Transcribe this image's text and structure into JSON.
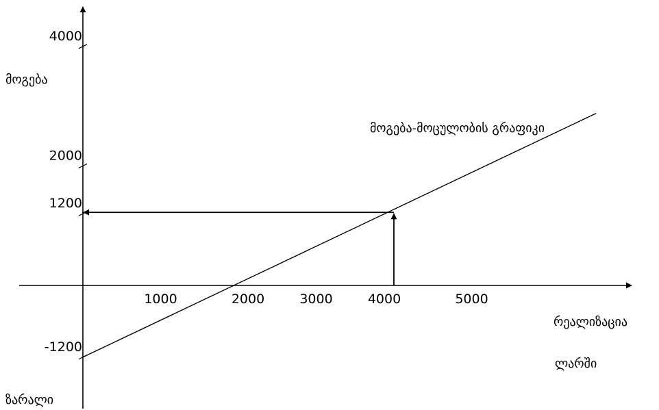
{
  "chart_data": {
    "type": "line",
    "title": "",
    "xlabel": "რეალიზაცია ლარში",
    "xlabel_lines": [
      "რეალიზაცია",
      "ლარში"
    ],
    "ylabel_top": "მოგება",
    "ylabel_bottom": "ზარალი",
    "x_ticks": [
      1000,
      2000,
      3000,
      4000,
      5000
    ],
    "y_ticks": [
      -1200,
      1200,
      2000,
      4000
    ],
    "series": [
      {
        "name": "მოგება-მოცულობის გრაფიკი",
        "x": [
          0,
          6600
        ],
        "y": [
          -1200,
          2880
        ]
      }
    ],
    "annotation": {
      "point": {
        "x": 4000,
        "y": 1200
      },
      "arrows": [
        "vertical from x-axis up to the point",
        "horizontal from the point to the y-axis"
      ]
    },
    "xlim": [
      -800,
      7000
    ],
    "ylim": [
      -1800,
      5200
    ],
    "grid": false,
    "legend": "none"
  }
}
